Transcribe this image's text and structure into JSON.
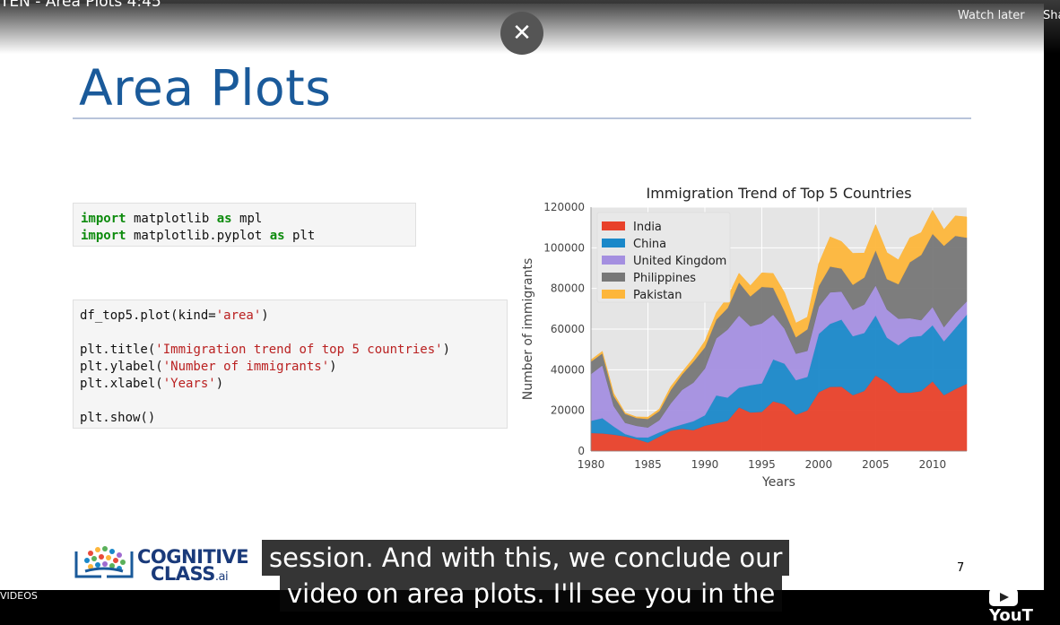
{
  "video": {
    "title": "TEN - Area Plots 4:45",
    "watch_later": "Watch later",
    "share": "Sha",
    "close_icon": "close-icon",
    "more_videos": "VIDEOS",
    "youtube_label": "YouT"
  },
  "slide": {
    "title": "Area Plots",
    "page_number": "7",
    "logo_line1": "COGNITIVE",
    "logo_line2": "CLASS",
    "logo_suffix": ".ai"
  },
  "code1": {
    "line1_kw": "import",
    "line1_mod": " matplotlib ",
    "line1_as": "as",
    "line1_alias": " mpl",
    "line2_kw": "import",
    "line2_mod": " matplotlib.pyplot ",
    "line2_as": "as",
    "line2_alias": " plt"
  },
  "code2": {
    "l1a": "df_top5.plot(kind=",
    "l1s": "'area'",
    "l1b": ")",
    "l2a": "plt.title(",
    "l2s": "'Immigration trend of top 5 countries'",
    "l2b": ")",
    "l3a": "plt.ylabel(",
    "l3s": "'Number of immigrants'",
    "l3b": ")",
    "l4a": "plt.xlabel(",
    "l4s": "'Years'",
    "l4b": ")",
    "l5": "plt.show()"
  },
  "captions": {
    "line1": "session. And with this, we conclude our",
    "line2": "video on area plots. I'll see you in the"
  },
  "chart_data": {
    "type": "area",
    "stacked": true,
    "title": "Immigration Trend of Top 5 Countries",
    "xlabel": "Years",
    "ylabel": "Number of immigrants",
    "xlim": [
      1980,
      2013
    ],
    "ylim": [
      0,
      120000
    ],
    "xticks": [
      1980,
      1985,
      1990,
      1995,
      2000,
      2005,
      2010
    ],
    "yticks": [
      0,
      20000,
      40000,
      60000,
      80000,
      100000,
      120000
    ],
    "grid": true,
    "legend_position": "top-left",
    "background": "#e5e5e5",
    "x": [
      1980,
      1981,
      1982,
      1983,
      1984,
      1985,
      1986,
      1987,
      1988,
      1989,
      1990,
      1991,
      1992,
      1993,
      1994,
      1995,
      1996,
      1997,
      1998,
      1999,
      2000,
      2001,
      2002,
      2003,
      2004,
      2005,
      2006,
      2007,
      2008,
      2009,
      2010,
      2011,
      2012,
      2013
    ],
    "series": [
      {
        "name": "India",
        "color": "#e8412a",
        "values": [
          8900,
          8700,
          8100,
          7200,
          5900,
          4200,
          7100,
          10000,
          11000,
          10300,
          12500,
          13700,
          14900,
          21500,
          19000,
          19300,
          24500,
          23000,
          17900,
          20000,
          29000,
          31600,
          31700,
          27500,
          29600,
          37200,
          33800,
          28700,
          28700,
          29500,
          34300,
          27500,
          30500,
          33100
        ]
      },
      {
        "name": "China",
        "color": "#1a88c9",
        "values": [
          6000,
          7500,
          4000,
          1200,
          900,
          2500,
          2100,
          1400,
          2100,
          4400,
          5100,
          13700,
          11400,
          9700,
          13400,
          14000,
          20600,
          20000,
          17000,
          16500,
          28600,
          31000,
          33000,
          29000,
          28500,
          29600,
          22000,
          23400,
          27400,
          27200,
          27600,
          26500,
          30000,
          34000
        ]
      },
      {
        "name": "United Kingdom",
        "color": "#a48fe0",
        "values": [
          23000,
          26000,
          10000,
          5500,
          5600,
          4900,
          6000,
          12000,
          17000,
          19000,
          23000,
          28000,
          33500,
          35500,
          29000,
          29500,
          22000,
          17200,
          13000,
          12800,
          13400,
          15500,
          13800,
          13000,
          14000,
          14700,
          13800,
          13000,
          9300,
          7700,
          9000,
          7000,
          7400,
          6500
        ]
      },
      {
        "name": "Philippines",
        "color": "#777777",
        "values": [
          6100,
          5900,
          5000,
          4400,
          3900,
          4200,
          4500,
          6600,
          7600,
          10300,
          10400,
          9200,
          10600,
          16300,
          14700,
          18000,
          13300,
          8600,
          8100,
          10600,
          10200,
          12700,
          11300,
          12300,
          13300,
          17300,
          15000,
          17000,
          27500,
          32100,
          36000,
          40000,
          38000,
          31400
        ]
      },
      {
        "name": "Pakistan",
        "color": "#fdb63b",
        "values": [
          900,
          1000,
          1300,
          500,
          500,
          900,
          1000,
          1700,
          1200,
          1800,
          3100,
          3400,
          5300,
          4500,
          5300,
          6900,
          7000,
          9200,
          7000,
          6000,
          11000,
          14600,
          13300,
          15500,
          12000,
          12600,
          13000,
          12000,
          12000,
          11000,
          11600,
          8000,
          9800,
          10200
        ]
      }
    ]
  }
}
